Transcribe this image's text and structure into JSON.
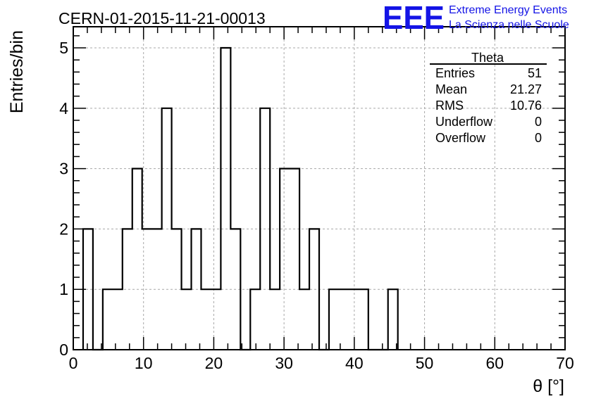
{
  "chart_data": {
    "type": "bar",
    "title": "CERN-01-2015-11-21-00013",
    "xlabel": "θ [°]",
    "ylabel": "Entries/bin",
    "xlim": [
      0,
      70
    ],
    "ylim": [
      0,
      5.35
    ],
    "grid": true,
    "bin_width": 1.4,
    "bins_start": 1.4,
    "values": [
      2,
      0,
      1,
      1,
      2,
      3,
      2,
      2,
      4,
      2,
      1,
      2,
      1,
      1,
      5,
      2,
      0,
      1,
      4,
      1,
      3,
      3,
      1,
      2,
      0,
      1,
      1,
      1,
      1,
      0,
      0,
      1
    ],
    "x_ticks": [
      0,
      10,
      20,
      30,
      40,
      50,
      60,
      70
    ],
    "y_ticks": [
      0,
      1,
      2,
      3,
      4,
      5
    ]
  },
  "stats_box": {
    "name": "Theta",
    "rows": [
      {
        "label": "Entries",
        "value": "51"
      },
      {
        "label": "Mean",
        "value": "21.27"
      },
      {
        "label": "RMS",
        "value": "10.76"
      },
      {
        "label": "Underflow",
        "value": "0"
      },
      {
        "label": "Overflow",
        "value": "0"
      }
    ]
  },
  "logo": {
    "mark": "EEE",
    "line1": "Extreme Energy Events",
    "line2": "La Scienza nelle Scuole",
    "color": "#1414e6"
  }
}
